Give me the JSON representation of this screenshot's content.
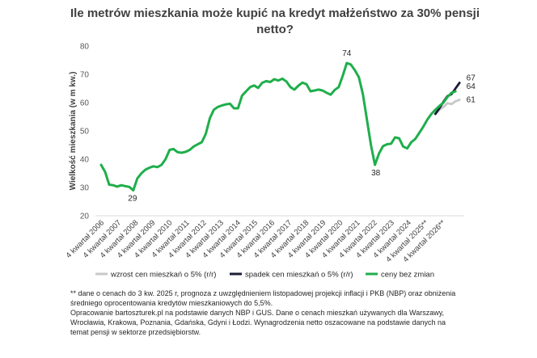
{
  "title_line1": "Ile metrów mieszkania może kupić na kredyt małżeństwo za 30% pensji",
  "title_line2": "netto?",
  "footnote_line1": "** dane o cenach do 3 kw. 2025 r, prognoza z uwzględnieniem listopadowej projekcji inflacji i PKB (NBP) oraz obniżenia",
  "footnote_line2": "średniego oprocentowania kredytów mieszkaniowych do 5,5%.",
  "footnote_line3": "Opracowanie bartoszturek.pl na podstawie danych NBP i GUS. Dane o cenach mieszkań używanych dla Warszawy,",
  "footnote_line4": "Wrocławia, Krakowa, Poznania, Gdańska, Gdyni i Łodzi. Wynagrodzenia netto oszacowane na podstawie danych na",
  "footnote_line5": "temat pensji w sektorze przedsiębiorstw.",
  "chart_data": {
    "type": "line",
    "title": "Ile metrów mieszkania może kupić na kredyt małżeństwo za 30% pensji netto?",
    "ylabel": "Wielkość mieszkania (w m kw.)",
    "xlabel": "",
    "ylim": [
      20,
      80
    ],
    "yticks": [
      20,
      30,
      40,
      50,
      60,
      70,
      80
    ],
    "grid": false,
    "legend_position": "bottom",
    "x_tick_labels": [
      "4 kwartał 2006",
      "4 kwartał 2007",
      "4 kwartał 2008",
      "4 kwartał 2009",
      "4 kwartał 2010",
      "4 kwartał 2011",
      "4 kwartał 2012",
      "4 kwartał 2013",
      "4 kwartał 2014",
      "4 kwartał 2015",
      "4 kwartał 2016",
      "4 kwartał 2017",
      "4 kwartał 2018",
      "4 kwartał 2019",
      "4 kwartał 2020",
      "4 kwartał 2021",
      "4 kwartał 2022",
      "4 kwartał 2023",
      "4 kwartał 2024",
      "4 kwartał 2025**",
      "4 kwartał 2026**"
    ],
    "base_series": {
      "name": "ceny bez zmian",
      "color": "#1fae4b",
      "start_quarter_index": 0,
      "values": [
        38,
        35.5,
        31,
        30.8,
        30.3,
        30.8,
        30.5,
        30.2,
        29,
        33.2,
        35,
        36.3,
        37,
        37.5,
        37.2,
        38,
        40,
        43.3,
        43.6,
        42.5,
        42.3,
        42.6,
        43.3,
        44.5,
        45.3,
        46,
        49,
        54.5,
        57.5,
        58.5,
        59,
        59.4,
        59.6,
        58,
        58,
        62.5,
        64,
        65.5,
        66.1,
        65.2,
        67,
        67.6,
        67.3,
        68.3,
        67.8,
        68.5,
        67.5,
        65.5,
        64.6,
        66,
        67.1,
        66.5,
        64,
        64.3,
        64.6,
        64.3,
        63.5,
        62.8,
        64.5,
        65.5,
        69.5,
        74,
        73.5,
        71.5,
        69,
        63,
        54,
        45,
        38,
        42,
        44.6,
        45.3,
        45.5,
        47.7,
        47.4,
        44.5,
        43.8,
        46,
        47.1,
        49.3,
        51.5,
        54,
        56,
        57.5,
        58.8,
        60,
        62,
        63.5,
        64
      ]
    },
    "forecast_series": [
      {
        "name": "wzrost cen mieszkań o 5% (r/r)",
        "color": "#c8c8c8",
        "start_quarter_index": 83,
        "values": [
          56,
          57.5,
          58.5,
          59.8,
          59.5,
          60.5,
          61
        ]
      },
      {
        "name": "spadek cen mieszkań o 5% (r/r)",
        "color": "#1b1e33",
        "start_quarter_index": 83,
        "values": [
          56,
          58,
          60.3,
          62.3,
          63,
          65,
          67
        ]
      }
    ],
    "annotations": [
      {
        "text": "29",
        "x_quarter_index": 8,
        "y": 29
      },
      {
        "text": "74",
        "x_quarter_index": 61,
        "y": 74
      },
      {
        "text": "38",
        "x_quarter_index": 68,
        "y": 38
      },
      {
        "text": "67",
        "x_quarter_index": 89,
        "y": 67
      },
      {
        "text": "64",
        "x_quarter_index": 89,
        "y": 64
      },
      {
        "text": "61",
        "x_quarter_index": 89,
        "y": 61
      }
    ]
  }
}
